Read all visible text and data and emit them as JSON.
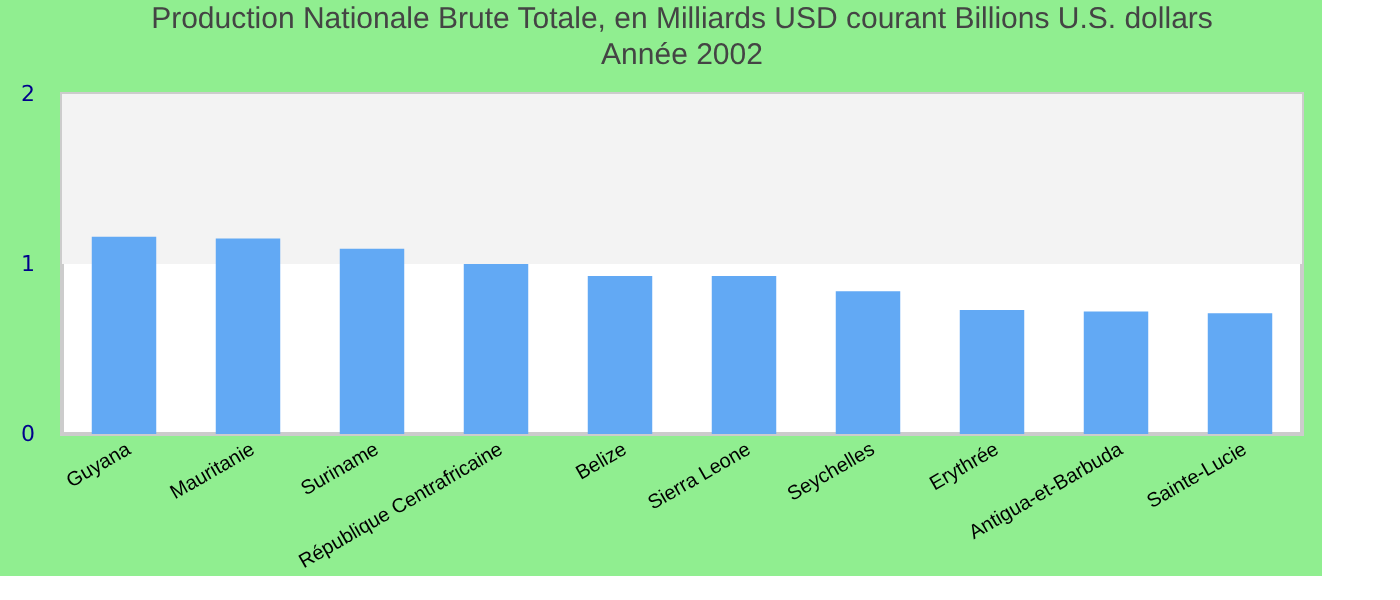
{
  "chart_data": {
    "type": "bar",
    "title": "Production Nationale Brute Totale, en Milliards USD courant Billions U.S. dollars",
    "subtitle": "Année 2002",
    "categories": [
      "Guyana",
      "Mauritanie",
      "Suriname",
      "République Centrafricaine",
      "Belize",
      "Sierra Leone",
      "Seychelles",
      "Erythrée",
      "Antigua-et-Barbuda",
      "Sainte-Lucie"
    ],
    "values": [
      1.16,
      1.15,
      1.09,
      1.0,
      0.93,
      0.93,
      0.84,
      0.73,
      0.72,
      0.71
    ],
    "color": "#62a9f4",
    "ylim": [
      0,
      2
    ],
    "yticks": [
      0,
      1,
      2
    ],
    "grid": false,
    "bands": [
      {
        "axis": "y",
        "from": 1,
        "to": 2,
        "color": "#f3f3f3"
      }
    ]
  }
}
